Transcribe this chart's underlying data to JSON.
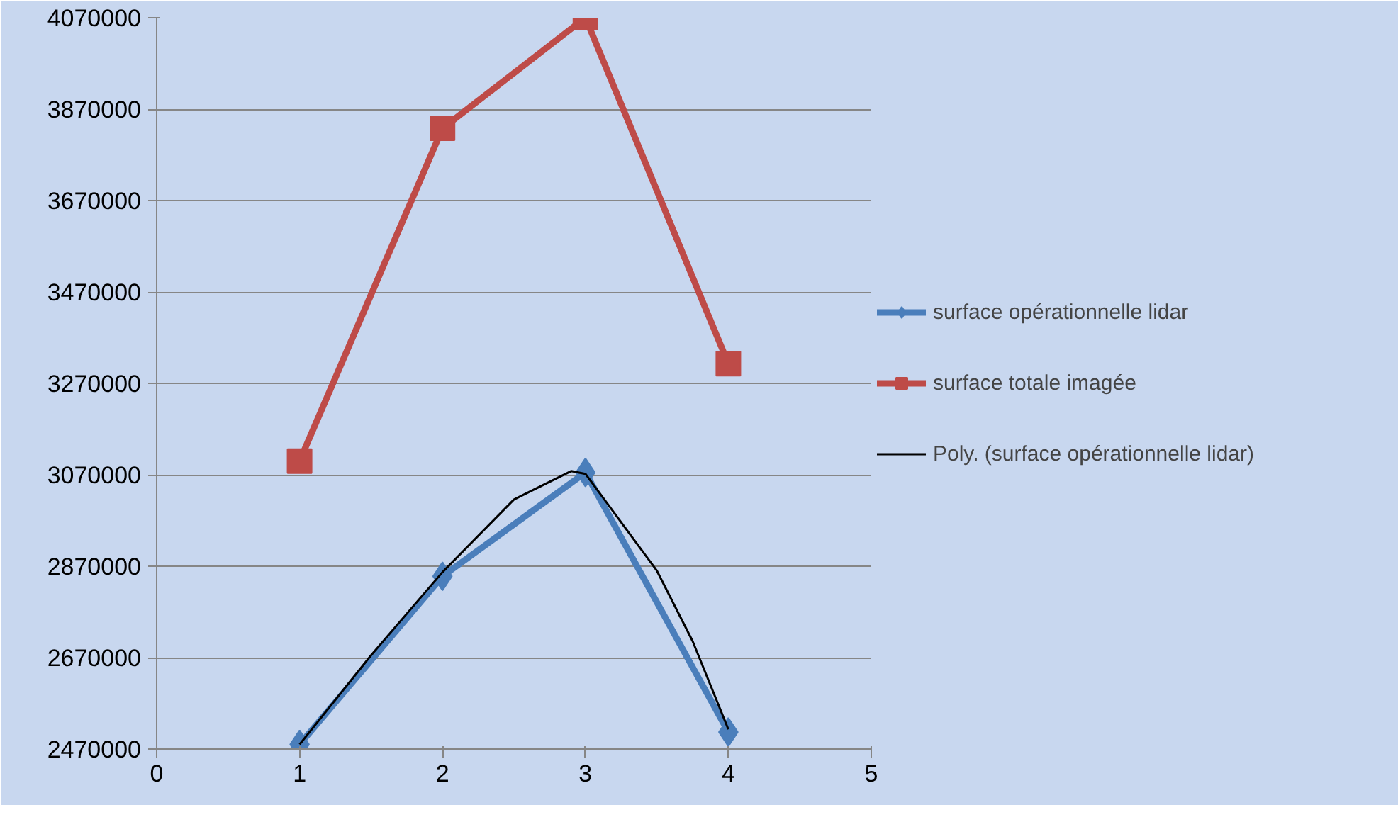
{
  "chart_data": {
    "type": "line",
    "xlim": [
      0,
      5
    ],
    "ylim": [
      2470000,
      4070000
    ],
    "xticks": [
      0,
      1,
      2,
      3,
      4,
      5
    ],
    "yticks": [
      2470000,
      2670000,
      2870000,
      3070000,
      3270000,
      3470000,
      3670000,
      3870000,
      4070000
    ],
    "grid": "y",
    "legend": "right",
    "line_style": "solid",
    "series": [
      {
        "name": "surface opérationnelle lidar",
        "color": "#4a7ebb",
        "marker": "diamond",
        "x": [
          1,
          2,
          3,
          4
        ],
        "values": [
          2480000,
          2848000,
          3075000,
          2507000
        ]
      },
      {
        "name": "surface totale imagée",
        "color": "#be4b48",
        "marker": "square",
        "x": [
          1,
          2,
          3,
          4
        ],
        "values": [
          3100000,
          3828000,
          4070000,
          3313000
        ]
      },
      {
        "name": "Poly. (surface opérationnelle lidar)",
        "color": "#000000",
        "marker": "none",
        "x": [
          1,
          1.5,
          2,
          2.5,
          2.9,
          3,
          3.5,
          3.75,
          4
        ],
        "values": [
          2480000,
          2675000,
          2857000,
          3016000,
          3078000,
          3072000,
          2860000,
          2706000,
          2513000
        ]
      }
    ]
  }
}
